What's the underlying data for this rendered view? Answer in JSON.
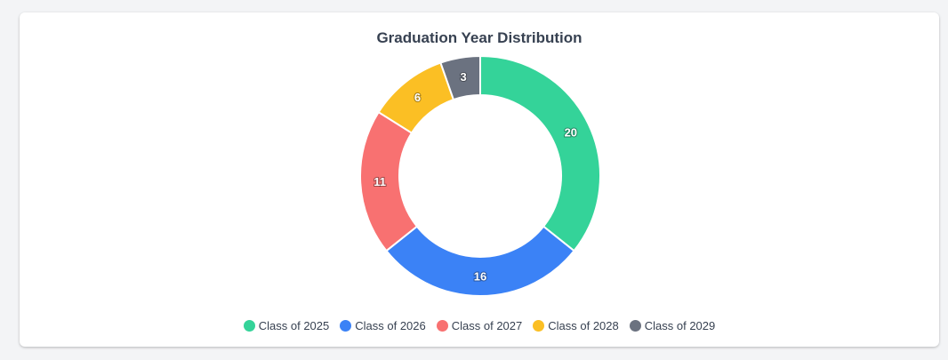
{
  "chart_data": {
    "type": "pie",
    "title": "Graduation Year Distribution",
    "categories": [
      "Class of 2025",
      "Class of 2026",
      "Class of 2027",
      "Class of 2028",
      "Class of 2029"
    ],
    "values": [
      20,
      16,
      11,
      6,
      3
    ],
    "colors": [
      "#34d399",
      "#3b82f6",
      "#f87171",
      "#fbbf24",
      "#6b7280"
    ],
    "donut": true,
    "legend_position": "bottom",
    "data_labels": true
  }
}
